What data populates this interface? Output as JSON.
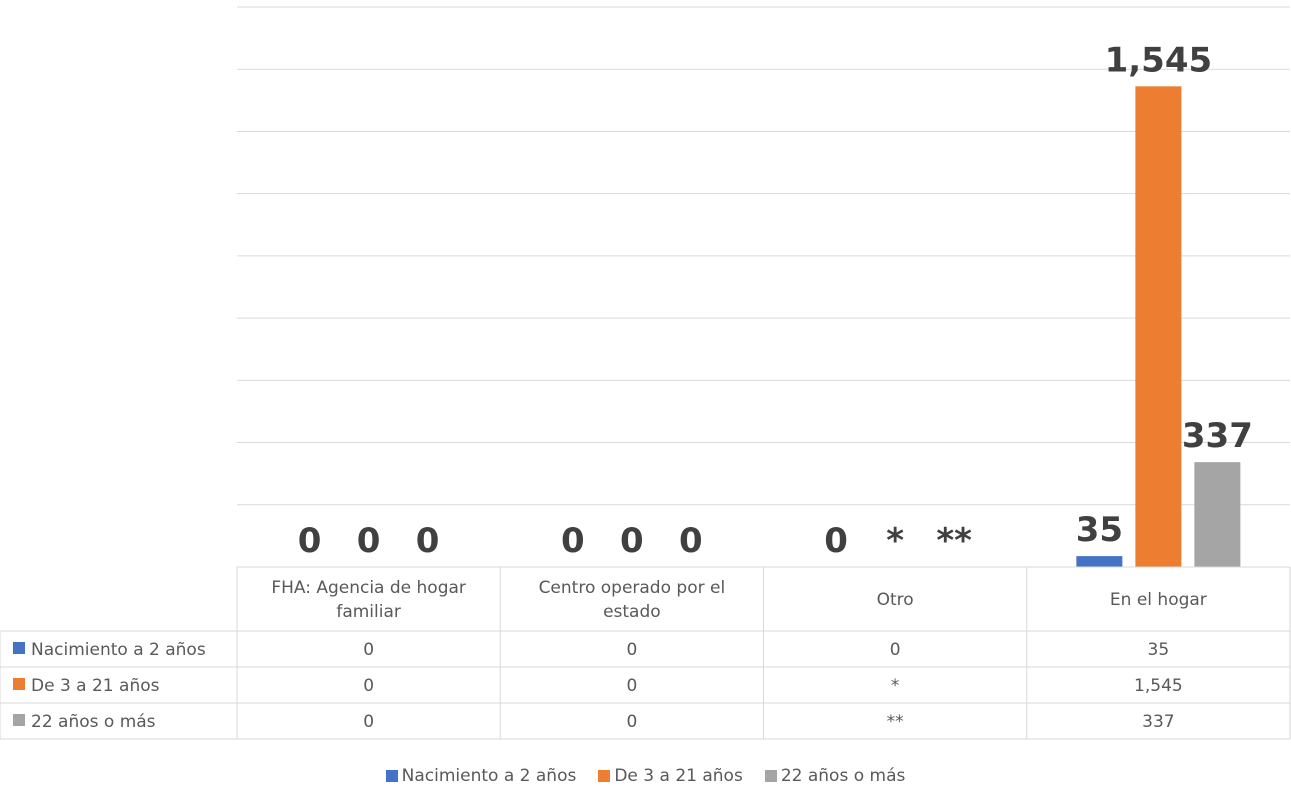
{
  "chart_data": {
    "type": "bar",
    "categories": [
      [
        "FHA: Agencia de hogar",
        "familiar"
      ],
      [
        "Centro operado por el",
        "estado"
      ],
      [
        "Otro"
      ],
      [
        "En el hogar"
      ]
    ],
    "series": [
      {
        "name": "Nacimiento a 2 años",
        "color": "#4472C4",
        "values": [
          0,
          0,
          0,
          35
        ],
        "labels": [
          "0",
          "0",
          "0",
          "35"
        ]
      },
      {
        "name": "De 3 a 21 años",
        "color": "#ED7D31",
        "values": [
          0,
          0,
          null,
          1545
        ],
        "labels": [
          "0",
          "0",
          "*",
          "1,545"
        ]
      },
      {
        "name": "22 años o más",
        "color": "#A5A5A5",
        "values": [
          0,
          0,
          null,
          337
        ],
        "labels": [
          "0",
          "0",
          "**",
          "337"
        ]
      }
    ],
    "ylim": [
      0,
      1800
    ],
    "grid": true,
    "data_table": true,
    "legend_position": "bottom"
  }
}
